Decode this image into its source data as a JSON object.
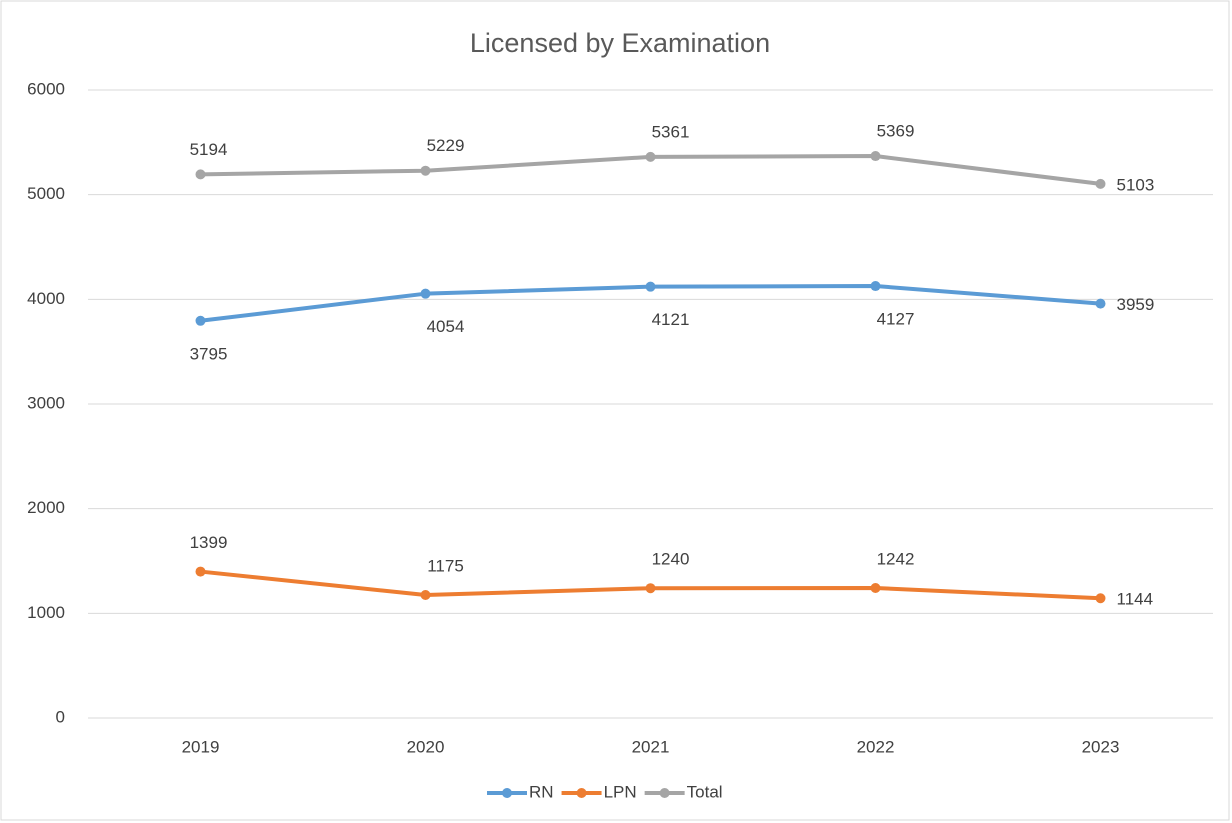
{
  "chart_data": {
    "type": "line",
    "title": "Licensed by Examination",
    "categories": [
      "2019",
      "2020",
      "2021",
      "2022",
      "2023"
    ],
    "series": [
      {
        "name": "RN",
        "color": "#5b9bd5",
        "values": [
          3795,
          4054,
          4121,
          4127,
          3959
        ]
      },
      {
        "name": "LPN",
        "color": "#ed7d31",
        "values": [
          1399,
          1175,
          1240,
          1242,
          1144
        ]
      },
      {
        "name": "Total",
        "color": "#a5a5a5",
        "values": [
          5194,
          5229,
          5361,
          5369,
          5103
        ]
      }
    ],
    "ylim": [
      0,
      6000
    ],
    "yticks": [
      0,
      1000,
      2000,
      3000,
      4000,
      5000,
      6000
    ],
    "grid": true,
    "legend": "bottom"
  }
}
